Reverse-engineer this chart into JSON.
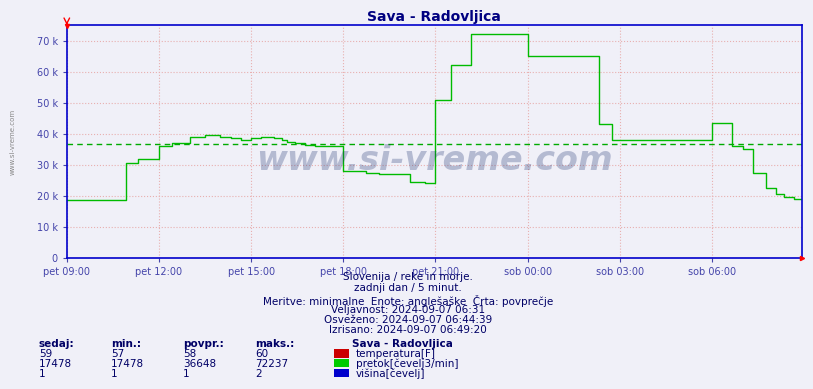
{
  "title": "Sava - Radovljica",
  "bg_color": "#f0f0f8",
  "plot_bg_color": "#f0f0f8",
  "grid_color": "#e8b0b0",
  "avg_line_color": "#00aa00",
  "avg_value": 36648,
  "line_color": "#00bb00",
  "ymax": 75000,
  "ymin": 0,
  "yticks": [
    0,
    10000,
    20000,
    30000,
    40000,
    50000,
    60000,
    70000
  ],
  "xlabel_color": "#4444aa",
  "title_color": "#000080",
  "xtick_labels": [
    "pet 09:00",
    "pet 12:00",
    "pet 15:00",
    "pet 18:00",
    "pet 21:00",
    "sob 00:00",
    "sob 03:00",
    "sob 06:00"
  ],
  "xtick_positions": [
    0,
    36,
    72,
    108,
    144,
    180,
    216,
    252
  ],
  "total_points": 288,
  "footer_lines": [
    "Slovenija / reke in morje.",
    "zadnji dan / 5 minut.",
    "Meritve: minimalne  Enote: anglešaške  Črta: povprečje",
    "Veljavnost: 2024-09-07 06:31",
    "Osveženo: 2024-09-07 06:44:39",
    "Izrisano: 2024-09-07 06:49:20"
  ],
  "table_headers": [
    "sedaj:",
    "min.:",
    "povpr.:",
    "maks.:"
  ],
  "table_rows": [
    [
      "59",
      "57",
      "58",
      "60",
      "temperatura[F]",
      "#cc0000"
    ],
    [
      "17478",
      "17478",
      "36648",
      "72237",
      "pretok[čevelj3/min]",
      "#00cc00"
    ],
    [
      "1",
      "1",
      "1",
      "2",
      "višina[čevelj]",
      "#0000cc"
    ]
  ],
  "station_label": "Sava - Radovljica",
  "watermark_text": "www.si-vreme.com",
  "flow_data": [
    18500,
    18500,
    18500,
    18500,
    18500,
    18500,
    18500,
    18500,
    18500,
    18500,
    18500,
    18500,
    18500,
    18500,
    18500,
    18500,
    18500,
    18500,
    18500,
    18500,
    18500,
    18500,
    18500,
    30500,
    30500,
    30500,
    30500,
    30500,
    32000,
    32000,
    32000,
    32000,
    32000,
    32000,
    32000,
    32000,
    36000,
    36000,
    36000,
    36000,
    36000,
    37000,
    37000,
    37000,
    37000,
    37000,
    37000,
    37000,
    39000,
    39000,
    39000,
    39000,
    39000,
    39000,
    39500,
    39500,
    39500,
    39500,
    39500,
    39500,
    39000,
    39000,
    39000,
    39000,
    38500,
    38500,
    38500,
    38500,
    38000,
    38000,
    38000,
    38000,
    38500,
    38500,
    38500,
    38500,
    39000,
    39000,
    39000,
    39000,
    39000,
    38500,
    38500,
    38500,
    38000,
    38000,
    37500,
    37500,
    37500,
    37000,
    37000,
    37000,
    37000,
    36500,
    36500,
    36500,
    36500,
    36000,
    36000,
    36000,
    36000,
    36000,
    36000,
    36000,
    36000,
    36000,
    36000,
    36000,
    28000,
    28000,
    28000,
    28000,
    28000,
    28000,
    28000,
    28000,
    28000,
    27500,
    27500,
    27500,
    27500,
    27500,
    27000,
    27000,
    27000,
    27000,
    27000,
    27000,
    27000,
    27000,
    27000,
    27000,
    27000,
    27000,
    24500,
    24500,
    24500,
    24500,
    24500,
    24500,
    24000,
    24000,
    24000,
    24000,
    51000,
    51000,
    51000,
    51000,
    51000,
    51000,
    62000,
    62000,
    62000,
    62000,
    62000,
    62000,
    62000,
    62000,
    72237,
    72237,
    72237,
    72237,
    72237,
    72237,
    72237,
    72237,
    72237,
    72237,
    72237,
    72237,
    72237,
    72237,
    72237,
    72237,
    72237,
    72237,
    72237,
    72237,
    72237,
    72237,
    65000,
    65000,
    65000,
    65000,
    65000,
    65000,
    65000,
    65000,
    65000,
    65000,
    65000,
    65000,
    65000,
    65000,
    65000,
    65000,
    65000,
    65000,
    65000,
    65000,
    65000,
    65000,
    65000,
    65000,
    65000,
    65000,
    65000,
    65000,
    43000,
    43000,
    43000,
    43000,
    43000,
    38000,
    38000,
    38000,
    38000,
    38000,
    38000,
    38000,
    38000,
    38000,
    38000,
    38000,
    38000,
    38000,
    38000,
    38000,
    38000,
    38000,
    38000,
    38000,
    38000,
    38000,
    38000,
    38000,
    38000,
    38000,
    38000,
    38000,
    38000,
    38000,
    38000,
    38000,
    38000,
    38000,
    38000,
    38000,
    38000,
    38000,
    38000,
    38000,
    43500,
    43500,
    43500,
    43500,
    43500,
    43500,
    43500,
    43500,
    36000,
    36000,
    36000,
    36000,
    35000,
    35000,
    35000,
    35000,
    27500,
    27500,
    27500,
    27500,
    27500,
    22500,
    22500,
    22500,
    22500,
    20500,
    20500,
    20500,
    19500,
    19500,
    19500,
    19500,
    19000,
    19000,
    19000,
    18700,
    18700,
    18700,
    18500,
    18500,
    18200,
    18200,
    17800,
    17800,
    17600,
    17600,
    17478,
    17478
  ]
}
